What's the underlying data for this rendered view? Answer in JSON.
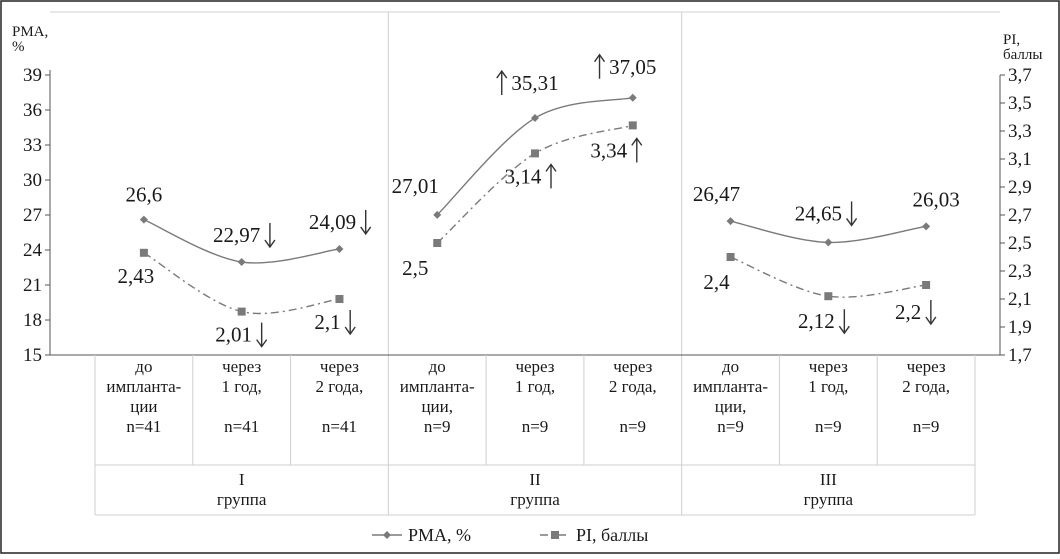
{
  "chart_data": {
    "type": "line",
    "y_left_title": [
      "PMA,",
      "%"
    ],
    "y_right_title": [
      "PI,",
      "баллы"
    ],
    "y_left": {
      "min": 15,
      "max": 39,
      "ticks": [
        "15",
        "18",
        "21",
        "24",
        "27",
        "30",
        "33",
        "36",
        "39"
      ]
    },
    "y_right": {
      "min": 1.7,
      "max": 3.7,
      "ticks": [
        "1,7",
        "1,9",
        "2,1",
        "2,3",
        "2,5",
        "2,7",
        "2,9",
        "3,1",
        "3,3",
        "3,5",
        "3,7"
      ]
    },
    "groups": [
      {
        "label": "I",
        "sublabel": "группа",
        "categories": [
          {
            "lines": [
              "до",
              "импланта-",
              "ции",
              "n=41"
            ]
          },
          {
            "lines": [
              "через",
              "1 год,",
              "",
              "n=41"
            ]
          },
          {
            "lines": [
              "через",
              "2 года,",
              "",
              "n=41"
            ]
          }
        ]
      },
      {
        "label": "II",
        "sublabel": "группа",
        "categories": [
          {
            "lines": [
              "до",
              "импланта-",
              "ции,",
              "n=9"
            ]
          },
          {
            "lines": [
              "через",
              "1 год,",
              "",
              "n=9"
            ]
          },
          {
            "lines": [
              "через",
              "2 года,",
              "",
              "n=9"
            ]
          }
        ]
      },
      {
        "label": "III",
        "sublabel": "группа",
        "categories": [
          {
            "lines": [
              "до",
              "импланта-",
              "ции,",
              "n=9"
            ]
          },
          {
            "lines": [
              "через",
              "1 год,",
              "",
              "n=9"
            ]
          },
          {
            "lines": [
              "через",
              "2 года,",
              "",
              "n=9"
            ]
          }
        ]
      }
    ],
    "series": [
      {
        "name": "PMA, %",
        "axis": "left",
        "color": "#7a7a7a",
        "dash": "solid",
        "marker": "diamond",
        "values": [
          26.6,
          22.97,
          24.09,
          27.01,
          35.31,
          37.05,
          26.47,
          24.65,
          26.03
        ],
        "labels": [
          "26,6",
          "22,97",
          "24,09",
          "27,01",
          "35,31",
          "37,05",
          "26,47",
          "24,65",
          "26,03"
        ],
        "arrows": [
          "",
          "down",
          "down",
          "",
          "up",
          "up",
          "",
          "down",
          ""
        ]
      },
      {
        "name": "PI, баллы",
        "axis": "right",
        "color": "#7a7a7a",
        "dash": "dashdot",
        "marker": "square",
        "values": [
          2.43,
          2.01,
          2.1,
          2.5,
          3.14,
          3.34,
          2.4,
          2.12,
          2.2
        ],
        "labels": [
          "2,43",
          "2,01",
          "2,1",
          "2,5",
          "3,14",
          "3,34",
          "2,4",
          "2,12",
          "2,2"
        ],
        "arrows": [
          "",
          "down",
          "down",
          "",
          "up",
          "up",
          "",
          "down",
          "down"
        ]
      }
    ],
    "legend": {
      "position": "bottom",
      "items": [
        "PMA, %",
        "PI, баллы"
      ]
    },
    "grid": false
  }
}
